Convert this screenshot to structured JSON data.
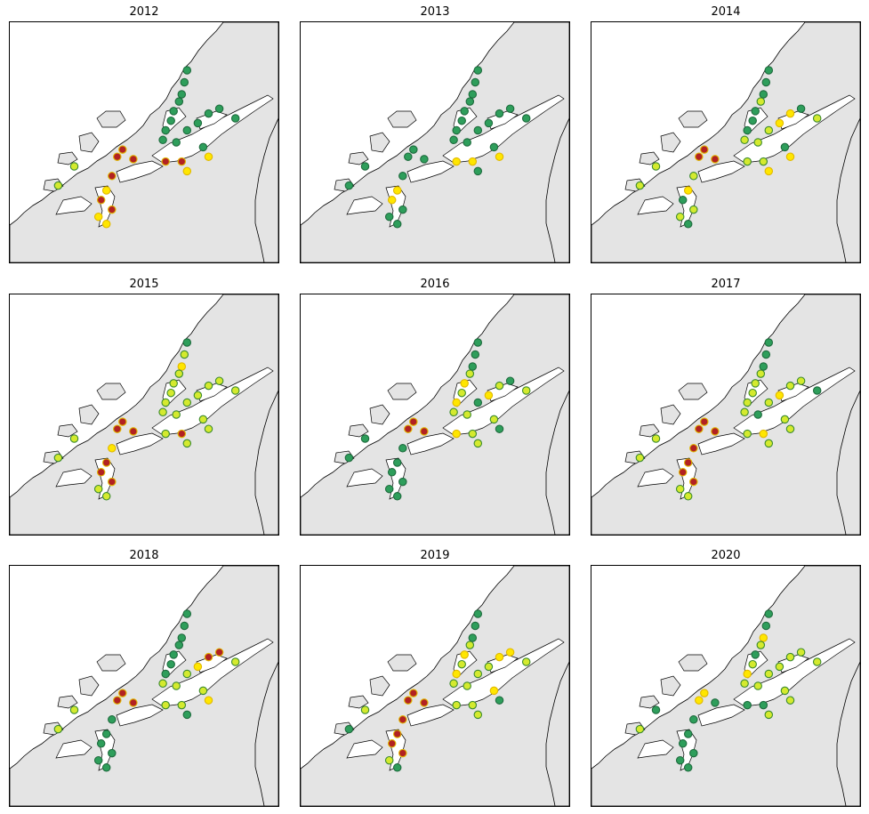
{
  "figure": {
    "panels": [
      {
        "year": "2012"
      },
      {
        "year": "2013"
      },
      {
        "year": "2014"
      },
      {
        "year": "2015"
      },
      {
        "year": "2016"
      },
      {
        "year": "2017"
      },
      {
        "year": "2018"
      },
      {
        "year": "2019"
      },
      {
        "year": "2020"
      }
    ]
  },
  "legend_colors": {
    "green": "#2e9e5b",
    "yellow_green": "#d4ea2e",
    "yellow": "#ffe600",
    "red": "#b22222",
    "land": "#e4e4e4",
    "sea": "#ffffff"
  },
  "site_status": {
    "2012": [
      "G",
      "G",
      "G",
      "G",
      "G",
      "G",
      "G",
      "G",
      "G",
      "G",
      "G",
      "G",
      "G",
      "G",
      "G",
      "R",
      "R",
      "R",
      "R",
      "Y",
      "R",
      "R",
      "Y",
      "Y",
      "YG",
      "YG",
      "R",
      "R",
      "Y",
      "Y"
    ],
    "2013": [
      "G",
      "G",
      "G",
      "G",
      "G",
      "G",
      "G",
      "G",
      "G",
      "G",
      "G",
      "G",
      "G",
      "G",
      "G",
      "G",
      "G",
      "G",
      "G",
      "Y",
      "Y",
      "G",
      "G",
      "G",
      "G",
      "G",
      "Y",
      "Y",
      "Y",
      "G"
    ],
    "2014": [
      "G",
      "G",
      "G",
      "YG",
      "G",
      "G",
      "G",
      "YG",
      "YG",
      "YG",
      "Y",
      "Y",
      "G",
      "YG",
      "G",
      "R",
      "R",
      "R",
      "YG",
      "Y",
      "G",
      "YG",
      "YG",
      "G",
      "YG",
      "YG",
      "YG",
      "YG",
      "Y",
      "Y"
    ],
    "2015": [
      "G",
      "YG",
      "Y",
      "YG",
      "YG",
      "YG",
      "YG",
      "YG",
      "YG",
      "YG",
      "YG",
      "YG",
      "YG",
      "YG",
      "YG",
      "R",
      "R",
      "R",
      "Y",
      "R",
      "R",
      "R",
      "YG",
      "YG",
      "YG",
      "YG",
      "YG",
      "R",
      "YG",
      "YG"
    ],
    "2016": [
      "G",
      "G",
      "G",
      "YG",
      "Y",
      "YG",
      "Y",
      "YG",
      "YG",
      "G",
      "Y",
      "YG",
      "G",
      "YG",
      "YG",
      "R",
      "R",
      "R",
      "G",
      "G",
      "G",
      "G",
      "G",
      "G",
      "G",
      "G",
      "Y",
      "YG",
      "G",
      "YG"
    ],
    "2017": [
      "G",
      "G",
      "G",
      "YG",
      "YG",
      "YG",
      "YG",
      "YG",
      "G",
      "YG",
      "Y",
      "YG",
      "YG",
      "G",
      "YG",
      "R",
      "R",
      "R",
      "R",
      "R",
      "R",
      "R",
      "YG",
      "YG",
      "YG",
      "YG",
      "YG",
      "Y",
      "YG",
      "YG"
    ],
    "2018": [
      "G",
      "G",
      "G",
      "G",
      "G",
      "G",
      "G",
      "YG",
      "YG",
      "YG",
      "Y",
      "R",
      "R",
      "YG",
      "YG",
      "R",
      "R",
      "R",
      "G",
      "G",
      "G",
      "G",
      "G",
      "G",
      "YG",
      "YG",
      "YG",
      "YG",
      "Y",
      "G"
    ],
    "2019": [
      "G",
      "G",
      "G",
      "YG",
      "Y",
      "YG",
      "Y",
      "YG",
      "YG",
      "YG",
      "YG",
      "Y",
      "Y",
      "YG",
      "Y",
      "R",
      "R",
      "R",
      "R",
      "R",
      "R",
      "R",
      "YG",
      "G",
      "YG",
      "G",
      "YG",
      "YG",
      "G",
      "YG"
    ],
    "2020": [
      "G",
      "G",
      "Y",
      "YG",
      "G",
      "YG",
      "Y",
      "YG",
      "YG",
      "YG",
      "YG",
      "YG",
      "YG",
      "YG",
      "YG",
      "Y",
      "Y",
      "G",
      "G",
      "G",
      "G",
      "G",
      "G",
      "G",
      "G",
      "YG",
      "G",
      "G",
      "YG",
      "YG"
    ]
  }
}
